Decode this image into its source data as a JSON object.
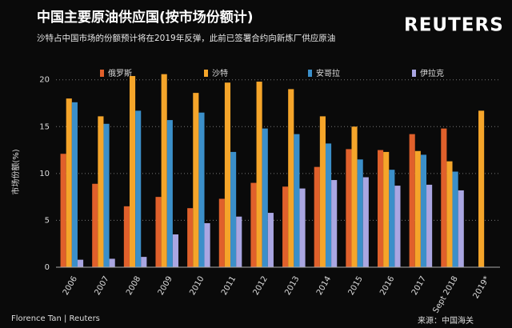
{
  "logo": "REUTERS",
  "credit": "Florence Tan | Reuters",
  "source": "来源：中国海关",
  "chart_data": {
    "type": "bar",
    "title": "中国主要原油供应国(按市场份额计)",
    "subtitle": "沙特占中国市场的份额预计将在2019年反弹，此前已签署合约向新炼厂供应原油",
    "y_label": "市场份额(%)",
    "categories": [
      "2006",
      "2007",
      "2008",
      "2009",
      "2010",
      "2011",
      "2012",
      "2013",
      "2014",
      "2015",
      "2016",
      "2017",
      "Sept 2018",
      "2019*"
    ],
    "series": [
      {
        "name": "俄罗斯",
        "color": "#e0602b",
        "values": [
          12.1,
          8.9,
          6.5,
          7.5,
          6.3,
          7.3,
          9.0,
          8.6,
          10.7,
          12.6,
          12.5,
          14.2,
          14.8,
          null
        ]
      },
      {
        "name": "沙特",
        "color": "#f5a52a",
        "values": [
          18.0,
          16.1,
          20.4,
          20.6,
          18.6,
          19.7,
          19.8,
          19.0,
          16.1,
          15.0,
          12.3,
          12.4,
          11.3,
          16.7
        ]
      },
      {
        "name": "安哥拉",
        "color": "#3b8fc9",
        "values": [
          17.6,
          15.3,
          16.7,
          15.7,
          16.5,
          12.3,
          14.8,
          14.2,
          13.2,
          11.5,
          10.4,
          12.0,
          10.2,
          null
        ]
      },
      {
        "name": "伊拉克",
        "color": "#aaa6e2",
        "values": [
          0.8,
          0.9,
          1.1,
          3.5,
          4.7,
          5.4,
          5.8,
          8.4,
          9.3,
          9.6,
          8.7,
          8.8,
          8.2,
          null
        ]
      }
    ],
    "ylim": [
      0,
      21
    ],
    "yticks": [
      0,
      5,
      10,
      15,
      20
    ],
    "grid": true
  }
}
